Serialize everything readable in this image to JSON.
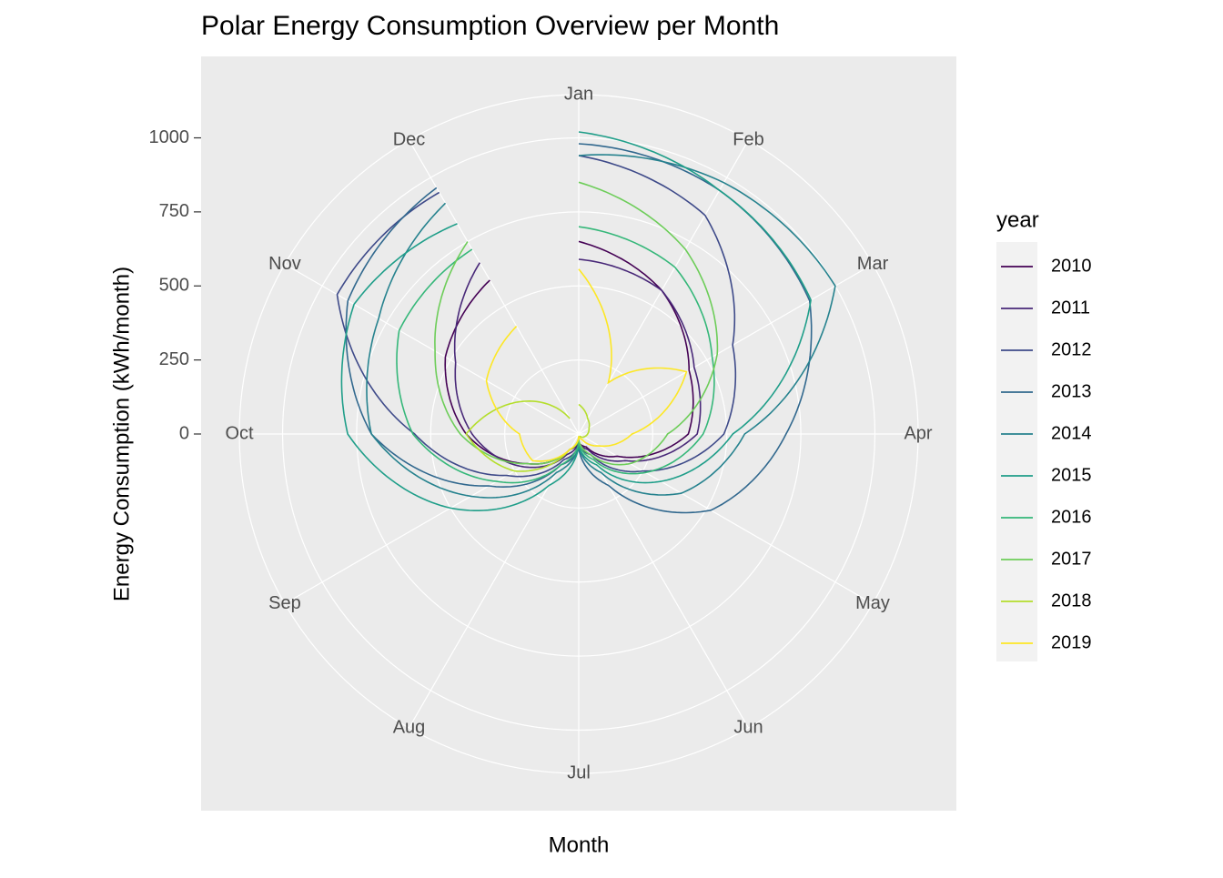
{
  "chart_data": {
    "type": "polar-line",
    "title": "Polar Energy Consumption Overview per Month",
    "x_label": "Month",
    "y_label": "Energy Consumption (kWh/month)",
    "legend_title": "year",
    "categories": [
      "Jan",
      "Feb",
      "Mar",
      "Apr",
      "May",
      "Jun",
      "Jul",
      "Aug",
      "Sep",
      "Oct",
      "Nov",
      "Dec"
    ],
    "ylim": [
      0,
      1020
    ],
    "yticks": [
      0,
      250,
      500,
      750,
      1000
    ],
    "grid": true,
    "legend_position": "right",
    "series": [
      {
        "name": "2010",
        "color": "#440154",
        "values": [
          650,
          560,
          430,
          370,
          150,
          50,
          30,
          60,
          200,
          380,
          520,
          600
        ]
      },
      {
        "name": "2011",
        "color": "#482878",
        "values": [
          590,
          560,
          450,
          400,
          180,
          60,
          30,
          80,
          220,
          360,
          480,
          668
        ]
      },
      {
        "name": "2012",
        "color": "#3E4A89",
        "values": [
          940,
          853,
          600,
          490,
          250,
          80,
          40,
          100,
          280,
          554,
          942,
          942
        ]
      },
      {
        "name": "2013",
        "color": "#31688E",
        "values": [
          980,
          950,
          900,
          700,
          515,
          200,
          50,
          120,
          350,
          700,
          900,
          960
        ]
      },
      {
        "name": "2014",
        "color": "#26828E",
        "values": [
          940,
          980,
          1000,
          560,
          400,
          150,
          40,
          150,
          420,
          700,
          780,
          900
        ]
      },
      {
        "name": "2015",
        "color": "#1F9E89",
        "values": [
          1020,
          950,
          905,
          520,
          320,
          120,
          40,
          200,
          500,
          780,
          876,
          820
        ]
      },
      {
        "name": "2016",
        "color": "#35B779",
        "values": [
          700,
          650,
          520,
          420,
          260,
          100,
          30,
          120,
          320,
          560,
          700,
          720
        ]
      },
      {
        "name": "2017",
        "color": "#6DCD59",
        "values": [
          850,
          720,
          540,
          300,
          200,
          80,
          20,
          60,
          200,
          400,
          560,
          750
        ]
      },
      {
        "name": "2018",
        "color": "#B4DE2C",
        "values": [
          100,
          60,
          40,
          30,
          20,
          10,
          10,
          60,
          250,
          380,
          220,
          60
        ]
      },
      {
        "name": "2019",
        "color": "#FDE725",
        "values": [
          557,
          200,
          420,
          180,
          80,
          20,
          10,
          60,
          180,
          200,
          360,
          420
        ]
      }
    ]
  }
}
